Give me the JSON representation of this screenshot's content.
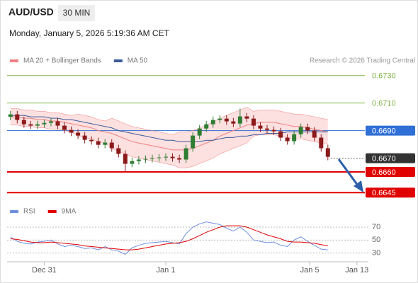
{
  "header": {
    "symbol": "AUD/USD",
    "timeframe": "30 MIN",
    "datetime": "Monday, January 5, 2026 5:19:36 AM CET"
  },
  "chart_data": [
    {
      "type": "candlestick",
      "source": "Research © 2026 Trading Central",
      "x": [
        0,
        1,
        2,
        3,
        4,
        5,
        6,
        7,
        8,
        9,
        10,
        11,
        12,
        13,
        14,
        15,
        16,
        17,
        18,
        19,
        20,
        21,
        22,
        23,
        24,
        25,
        26,
        27,
        28,
        29,
        30,
        31,
        32,
        33,
        34,
        35,
        36,
        37,
        38,
        39,
        40,
        41,
        42,
        43,
        44,
        45,
        46,
        47
      ],
      "open": [
        0.67,
        0.67018,
        0.66977,
        0.66946,
        0.66936,
        0.66946,
        0.66956,
        0.66967,
        0.66936,
        0.66905,
        0.66885,
        0.66864,
        0.66833,
        0.66823,
        0.66797,
        0.66813,
        0.66772,
        0.66731,
        0.66659,
        0.66679,
        0.6669,
        0.66695,
        0.667,
        0.66705,
        0.6671,
        0.667,
        0.6669,
        0.66772,
        0.66864,
        0.66915,
        0.66946,
        0.66977,
        0.66987,
        0.66967,
        0.66951,
        0.67003,
        0.66987,
        0.66936,
        0.66915,
        0.66905,
        0.66895,
        0.66849,
        0.66823,
        0.66874,
        0.66926,
        0.669,
        0.66849,
        0.66772
      ],
      "high": [
        0.67043,
        0.67043,
        0.67002,
        0.66971,
        0.66971,
        0.66981,
        0.66992,
        0.66992,
        0.66961,
        0.6693,
        0.6691,
        0.66889,
        0.66858,
        0.66848,
        0.66838,
        0.66838,
        0.66797,
        0.66756,
        0.66704,
        0.66715,
        0.6672,
        0.66725,
        0.6673,
        0.66735,
        0.66735,
        0.66725,
        0.66797,
        0.66889,
        0.6694,
        0.66971,
        0.67002,
        0.67012,
        0.67012,
        0.66992,
        0.6706,
        0.67028,
        0.67012,
        0.66961,
        0.6694,
        0.6693,
        0.6692,
        0.66874,
        0.66899,
        0.66951,
        0.66951,
        0.66925,
        0.66874,
        0.66797
      ],
      "low": [
        0.66975,
        0.66952,
        0.66921,
        0.66911,
        0.66911,
        0.66921,
        0.66931,
        0.66911,
        0.6688,
        0.6686,
        0.66839,
        0.66808,
        0.66798,
        0.66772,
        0.66772,
        0.66747,
        0.66706,
        0.666,
        0.66634,
        0.66654,
        0.66665,
        0.6667,
        0.66675,
        0.6668,
        0.66675,
        0.66665,
        0.66665,
        0.66747,
        0.66839,
        0.6689,
        0.66921,
        0.66952,
        0.66942,
        0.66926,
        0.66926,
        0.66962,
        0.66911,
        0.6689,
        0.6688,
        0.6687,
        0.66824,
        0.66798,
        0.66798,
        0.66849,
        0.66875,
        0.66824,
        0.66747,
        0.66685
      ],
      "close": [
        0.67018,
        0.66977,
        0.66946,
        0.66936,
        0.66946,
        0.66956,
        0.66967,
        0.66936,
        0.66905,
        0.66885,
        0.66864,
        0.66833,
        0.66823,
        0.66797,
        0.66813,
        0.66772,
        0.66731,
        0.66659,
        0.66679,
        0.6669,
        0.66695,
        0.667,
        0.66705,
        0.6671,
        0.667,
        0.6669,
        0.66772,
        0.66864,
        0.66915,
        0.66946,
        0.66977,
        0.66987,
        0.66967,
        0.66951,
        0.67003,
        0.66987,
        0.66936,
        0.66915,
        0.66905,
        0.66895,
        0.66849,
        0.66823,
        0.66874,
        0.66926,
        0.669,
        0.66849,
        0.66772,
        0.6671
      ],
      "up_color": "#2e7d32",
      "down_color": "#8b1a1a",
      "series": [
        {
          "name": "MA 20 + Bollinger Bands",
          "color": "#f08080",
          "band_color": "#fde0e0",
          "values": [
            0.67,
            0.67,
            0.6699,
            0.6699,
            0.6698,
            0.6698,
            0.6697,
            0.6697,
            0.6696,
            0.6695,
            0.6694,
            0.6693,
            0.6692,
            0.669,
            0.6689,
            0.6688,
            0.6686,
            0.6684,
            0.6682,
            0.6681,
            0.668,
            0.6679,
            0.6678,
            0.6677,
            0.6676,
            0.6676,
            0.6676,
            0.6677,
            0.6679,
            0.6681,
            0.6683,
            0.6686,
            0.6688,
            0.669,
            0.6692,
            0.6694,
            0.6695,
            0.6696,
            0.6696,
            0.6696,
            0.6695,
            0.6694,
            0.6693,
            0.6693,
            0.6692,
            0.6691,
            0.669,
            0.6689
          ],
          "upper": [
            0.6706,
            0.6706,
            0.6705,
            0.6705,
            0.6704,
            0.6704,
            0.6703,
            0.6703,
            0.6702,
            0.6701,
            0.6702,
            0.6701,
            0.67,
            0.6698,
            0.6697,
            0.6699,
            0.6697,
            0.6695,
            0.6693,
            0.6692,
            0.6691,
            0.669,
            0.6689,
            0.6688,
            0.6687,
            0.6689,
            0.6689,
            0.669,
            0.6692,
            0.6694,
            0.6696,
            0.6699,
            0.6701,
            0.6703,
            0.6705,
            0.6707,
            0.6704,
            0.6705,
            0.6705,
            0.6705,
            0.6704,
            0.6703,
            0.6702,
            0.6702,
            0.6701,
            0.67,
            0.6699,
            0.6698
          ],
          "lower": [
            0.6694,
            0.6694,
            0.6693,
            0.6693,
            0.6692,
            0.6692,
            0.6691,
            0.6691,
            0.669,
            0.6689,
            0.6686,
            0.6685,
            0.6684,
            0.6682,
            0.6681,
            0.6677,
            0.6675,
            0.6673,
            0.6671,
            0.667,
            0.6669,
            0.6668,
            0.6667,
            0.6666,
            0.6665,
            0.6663,
            0.6663,
            0.6664,
            0.6666,
            0.6668,
            0.667,
            0.6673,
            0.6675,
            0.6677,
            0.6679,
            0.6681,
            0.6686,
            0.6687,
            0.6687,
            0.6687,
            0.6686,
            0.6685,
            0.6684,
            0.6684,
            0.6683,
            0.6682,
            0.6681,
            0.668
          ]
        },
        {
          "name": "MA 50",
          "color": "#3a5a9a",
          "values": [
            0.6701,
            0.6701,
            0.6701,
            0.67,
            0.67,
            0.67,
            0.6699,
            0.6699,
            0.6698,
            0.6698,
            0.6697,
            0.6696,
            0.6695,
            0.6694,
            0.6693,
            0.6692,
            0.669,
            0.6689,
            0.6688,
            0.6687,
            0.6686,
            0.6685,
            0.6684,
            0.6683,
            0.6683,
            0.6682,
            0.6682,
            0.6682,
            0.6682,
            0.6683,
            0.6683,
            0.6684,
            0.6685,
            0.6685,
            0.6686,
            0.6686,
            0.6687,
            0.6687,
            0.6688,
            0.6688,
            0.6688,
            0.6689,
            0.6689,
            0.6689,
            0.6689,
            0.6689,
            0.6689,
            0.6689
          ]
        }
      ],
      "levels": [
        {
          "value": 0.673,
          "label": "0.6730",
          "color": "#7cb342",
          "boxed": false
        },
        {
          "value": 0.671,
          "label": "0.6710",
          "color": "#7cb342",
          "boxed": false
        },
        {
          "value": 0.669,
          "label": "0.6690",
          "color": "#2f6fd6",
          "boxed": true
        },
        {
          "value": 0.667,
          "label": "0.6670",
          "color": "#333333",
          "boxed": true
        },
        {
          "value": 0.666,
          "label": "0.6660",
          "color": "#e00000",
          "boxed": true
        },
        {
          "value": 0.6645,
          "label": "0.6645",
          "color": "#e00000",
          "boxed": true
        }
      ],
      "xlim": [
        -0.5,
        53
      ],
      "ylim": [
        0.664,
        0.6736
      ],
      "xticks": [
        {
          "value": 5,
          "label": "Dec 31"
        },
        {
          "value": 23,
          "label": "Jan 1"
        },
        {
          "value": 44.3,
          "label": "Jan 5"
        },
        {
          "value": 51.3,
          "label": "Jan 13"
        }
      ]
    },
    {
      "type": "line",
      "series": [
        {
          "name": "RSI",
          "color": "#6f8fe0",
          "values": [
            55,
            48,
            45,
            44,
            47,
            48,
            50,
            44,
            40,
            42,
            40,
            37,
            38,
            35,
            40,
            35,
            33,
            28,
            38,
            42,
            45,
            46,
            47,
            48,
            46,
            44,
            60,
            70,
            75,
            78,
            76,
            74,
            68,
            64,
            70,
            62,
            50,
            48,
            46,
            47,
            42,
            40,
            50,
            55,
            48,
            42,
            36,
            35
          ]
        },
        {
          "name": "9MA",
          "color": "#e00000",
          "values": [
            52,
            51,
            49,
            47,
            46,
            46,
            47,
            46,
            45,
            44,
            43,
            41,
            40,
            39,
            38,
            37,
            36,
            35,
            35,
            36,
            38,
            40,
            42,
            44,
            45,
            46,
            48,
            52,
            57,
            62,
            66,
            70,
            72,
            72,
            72,
            70,
            66,
            62,
            58,
            55,
            52,
            48,
            47,
            47,
            46,
            45,
            43,
            41
          ]
        }
      ],
      "ylim": [
        22,
        82
      ],
      "yticks": [
        30,
        50,
        70
      ],
      "grid": true
    }
  ]
}
